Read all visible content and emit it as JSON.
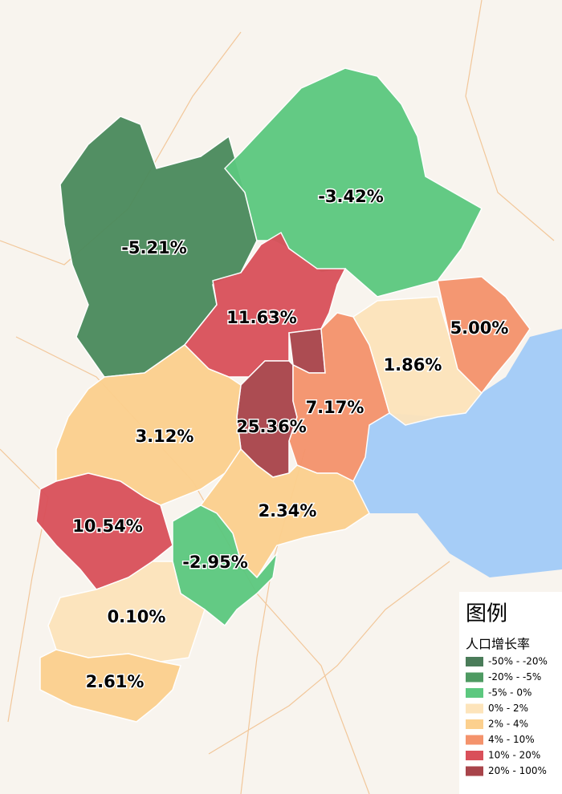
{
  "regions": [
    {
      "label": "-5.21%",
      "color": "#4a8a5c"
    },
    {
      "label": "-3.42%",
      "color": "#5cc87f"
    },
    {
      "label": "11.63%",
      "color": "#d9505a"
    },
    {
      "label": "25.36%",
      "color": "#a8444a"
    },
    {
      "label": "7.17%",
      "color": "#f4936c"
    },
    {
      "label": "1.86%",
      "color": "#fde4bb"
    },
    {
      "label": "5.00%",
      "color": "#f4936c"
    },
    {
      "label": "3.12%",
      "color": "#fcd08e"
    },
    {
      "label": "2.34%",
      "color": "#fcd08e"
    },
    {
      "label": "10.54%",
      "color": "#d9505a"
    },
    {
      "label": "-2.95%",
      "color": "#5cc87f"
    },
    {
      "label": "0.10%",
      "color": "#fde4bb"
    },
    {
      "label": "2.61%",
      "color": "#fcd08e"
    }
  ],
  "legend": {
    "title": "图例",
    "subtitle": "人口增长率",
    "items": [
      {
        "label": "-50% - -20%",
        "color": "#4a7c59"
      },
      {
        "label": "-20% - -5%",
        "color": "#4e9a62"
      },
      {
        "label": "-5% - 0%",
        "color": "#5cc87f"
      },
      {
        "label": "0% - 2%",
        "color": "#fde4bb"
      },
      {
        "label": "2% - 4%",
        "color": "#fcd08e"
      },
      {
        "label": "4% - 10%",
        "color": "#f4936c"
      },
      {
        "label": "10% - 20%",
        "color": "#d9505a"
      },
      {
        "label": "20% - 100%",
        "color": "#a8444a"
      }
    ]
  }
}
